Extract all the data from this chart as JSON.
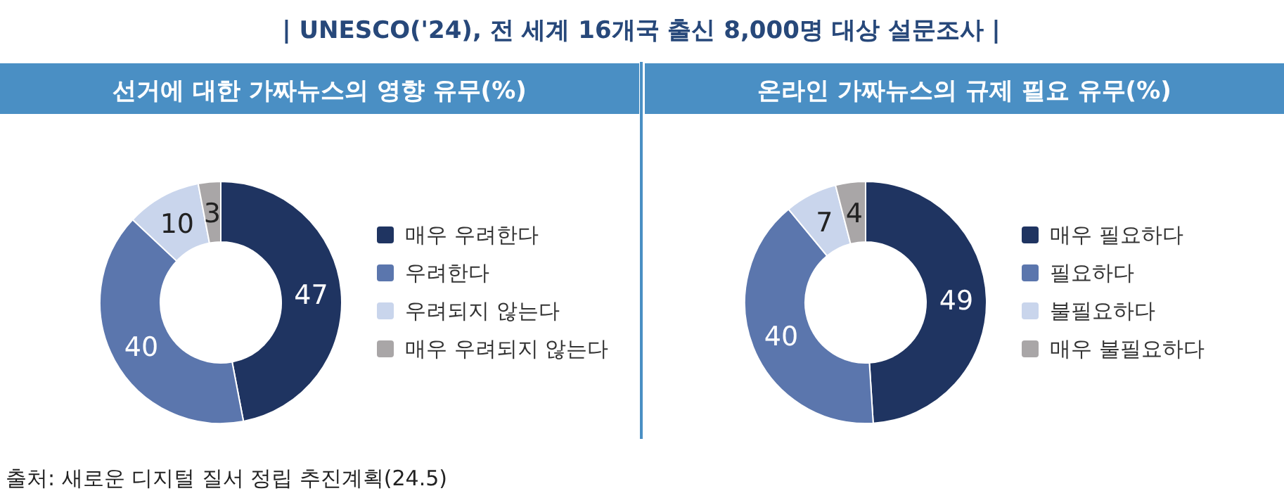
{
  "chart_data": [
    {
      "type": "donut",
      "title": "선거에 대한 가짜뉴스의 영향 유무(%)",
      "categories": [
        "매우 우려한다",
        "우려한다",
        "우려되지 않는다",
        "매우 우려되지 않는다"
      ],
      "values": [
        47,
        40,
        10,
        3
      ],
      "colors": [
        "#1f3461",
        "#5b76ad",
        "#c9d5ec",
        "#a9a6a7"
      ],
      "data_labels": true,
      "legend": "right",
      "annotations": [
        "| UNESCO('24), 전  세계 16개국 출신 8,000명 대상 설문조사 |",
        "출처: 새로운 디지털 질서 정립 추진계획(24.5)"
      ]
    },
    {
      "type": "donut",
      "title": "온라인 가짜뉴스의 규제 필요 유무(%)",
      "categories": [
        "매우 필요하다",
        "필요하다",
        "불필요하다",
        "매우 불필요하다"
      ],
      "values": [
        49,
        40,
        7,
        4
      ],
      "colors": [
        "#1f3461",
        "#5b76ad",
        "#c9d5ec",
        "#a9a6a7"
      ],
      "data_labels": true,
      "legend": "right"
    }
  ]
}
